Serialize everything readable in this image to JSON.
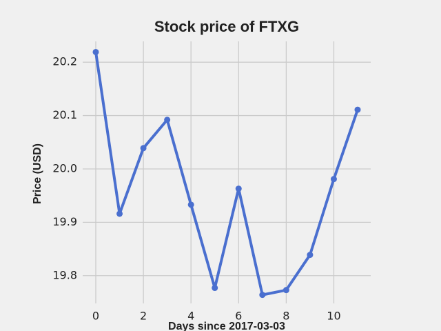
{
  "chart_data": {
    "type": "line",
    "title": "Stock price of FTXG",
    "x_label": "Days since 2017-03-03",
    "y_label": "Price (USD)",
    "x": [
      0,
      1,
      2,
      3,
      4,
      5,
      6,
      7,
      8,
      9,
      10,
      11
    ],
    "series": [
      {
        "name": "FTXG",
        "color": "#4a6fcf",
        "values": [
          20.219,
          19.916,
          20.039,
          20.092,
          19.933,
          19.777,
          19.963,
          19.764,
          19.773,
          19.839,
          19.981,
          20.111
        ]
      }
    ],
    "xlim": [
      -0.55,
      11.55
    ],
    "xticks": [
      0,
      2,
      4,
      6,
      8,
      10
    ],
    "ylim": [
      19.748,
      20.239
    ],
    "yticks": [
      19.8,
      19.9,
      {
        "value": 20,
        "label": "20.0"
      },
      20.1,
      20.2
    ],
    "grid": true
  }
}
